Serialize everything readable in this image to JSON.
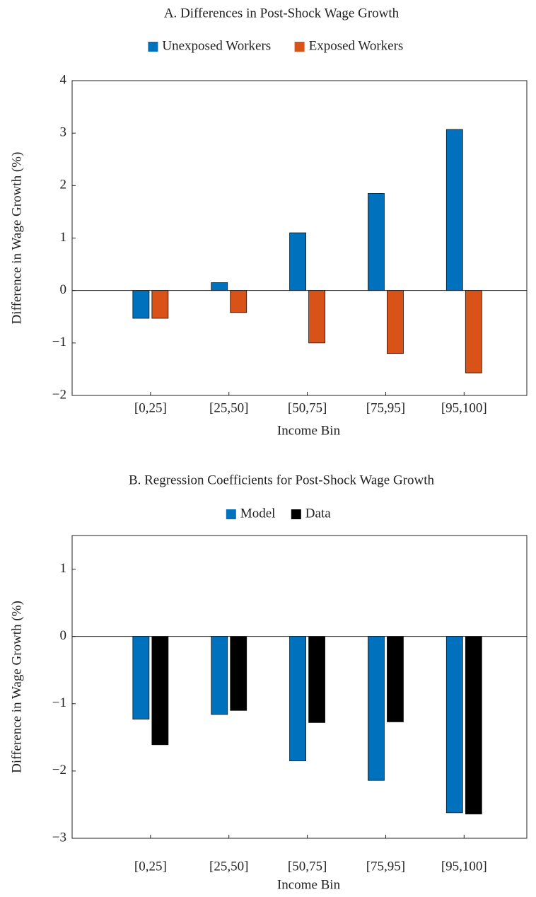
{
  "chart_data": [
    {
      "type": "bar",
      "title": "A. Differences in Post-Shock Wage Growth",
      "x_label": "Income Bin",
      "y_label": "Difference in Wage Growth (%)",
      "categories": [
        "[0,25]",
        "[25,50]",
        "[50,75]",
        "[75,95]",
        "[95,100]"
      ],
      "series": [
        {
          "name": "Unexposed Workers",
          "color": "#0072bd",
          "values": [
            -0.53,
            0.15,
            1.1,
            1.85,
            3.07
          ]
        },
        {
          "name": "Exposed Workers",
          "color": "#d95319",
          "values": [
            -0.53,
            -0.42,
            -1.0,
            -1.2,
            -1.57
          ]
        }
      ],
      "ylim": [
        -2,
        4
      ],
      "yticks": [
        {
          "value": -2,
          "label": "−2"
        },
        {
          "value": -1,
          "label": "−1"
        },
        0,
        1,
        2,
        3,
        4
      ]
    },
    {
      "type": "bar",
      "title": "B. Regression Coefficients for Post-Shock Wage Growth",
      "x_label": "Income Bin",
      "y_label": "Difference in Wage Growth (%)",
      "categories": [
        "[0,25]",
        "[25,50]",
        "[50,75]",
        "[75,95]",
        "[95,100]"
      ],
      "series": [
        {
          "name": "Model",
          "color": "#0072bd",
          "values": [
            -1.23,
            -1.16,
            -1.85,
            -2.14,
            -2.62
          ]
        },
        {
          "name": "Data",
          "color": "#000000",
          "values": [
            -1.61,
            -1.1,
            -1.28,
            -1.27,
            -2.64
          ]
        }
      ],
      "ylim": [
        -3,
        1.5
      ],
      "yticks": [
        {
          "value": -3,
          "label": "−3"
        },
        {
          "value": -2,
          "label": "−2"
        },
        {
          "value": -1,
          "label": "−1"
        },
        0,
        1
      ]
    }
  ]
}
